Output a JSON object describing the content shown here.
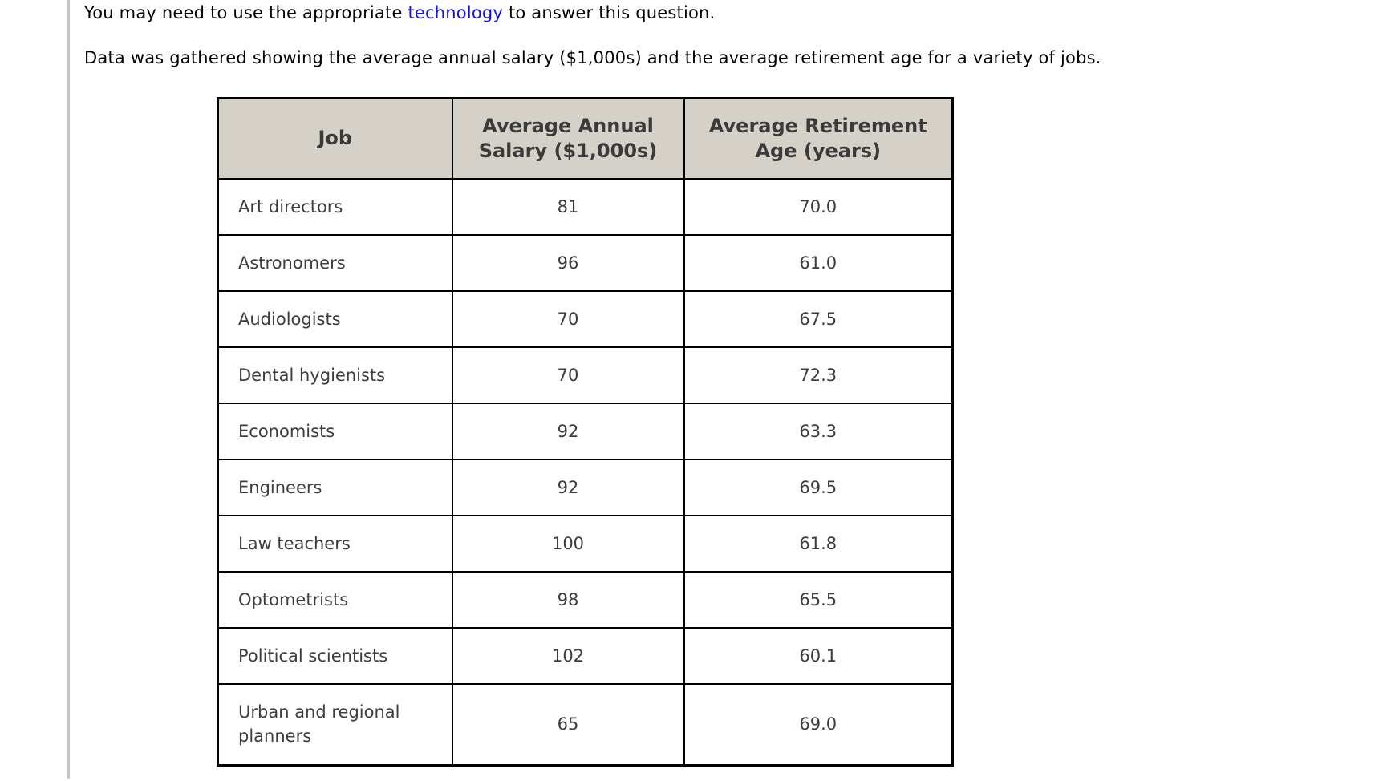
{
  "intro": {
    "text_before_link": "You may need to use the appropriate ",
    "link_text": "technology",
    "text_after_link": " to answer this question."
  },
  "description": "Data was gathered showing the average annual salary ($1,000s) and the average retirement age for a variety of jobs.",
  "table": {
    "columns": [
      {
        "lines": [
          "Job"
        ]
      },
      {
        "lines": [
          "Average Annual",
          "Salary ($1,000s)"
        ]
      },
      {
        "lines": [
          "Average Retirement",
          "Age (years)"
        ]
      }
    ],
    "rows": [
      {
        "job": "Art directors",
        "salary": "81",
        "age": "70.0"
      },
      {
        "job": "Astronomers",
        "salary": "96",
        "age": "61.0"
      },
      {
        "job": "Audiologists",
        "salary": "70",
        "age": "67.5"
      },
      {
        "job": "Dental hygienists",
        "salary": "70",
        "age": "72.3"
      },
      {
        "job": "Economists",
        "salary": "92",
        "age": "63.3"
      },
      {
        "job": "Engineers",
        "salary": "92",
        "age": "69.5"
      },
      {
        "job": "Law teachers",
        "salary": "100",
        "age": "61.8"
      },
      {
        "job": "Optometrists",
        "salary": "98",
        "age": "65.5"
      },
      {
        "job": "Political scientists",
        "salary": "102",
        "age": "60.1"
      },
      {
        "job": "Urban and regional planners",
        "salary": "65",
        "age": "69.0"
      }
    ]
  },
  "colors": {
    "header_background": "#d5d1c8",
    "table_border": "#000000",
    "link_blue": "#1414dd",
    "left_divider_gray": "#c6c6c6"
  }
}
